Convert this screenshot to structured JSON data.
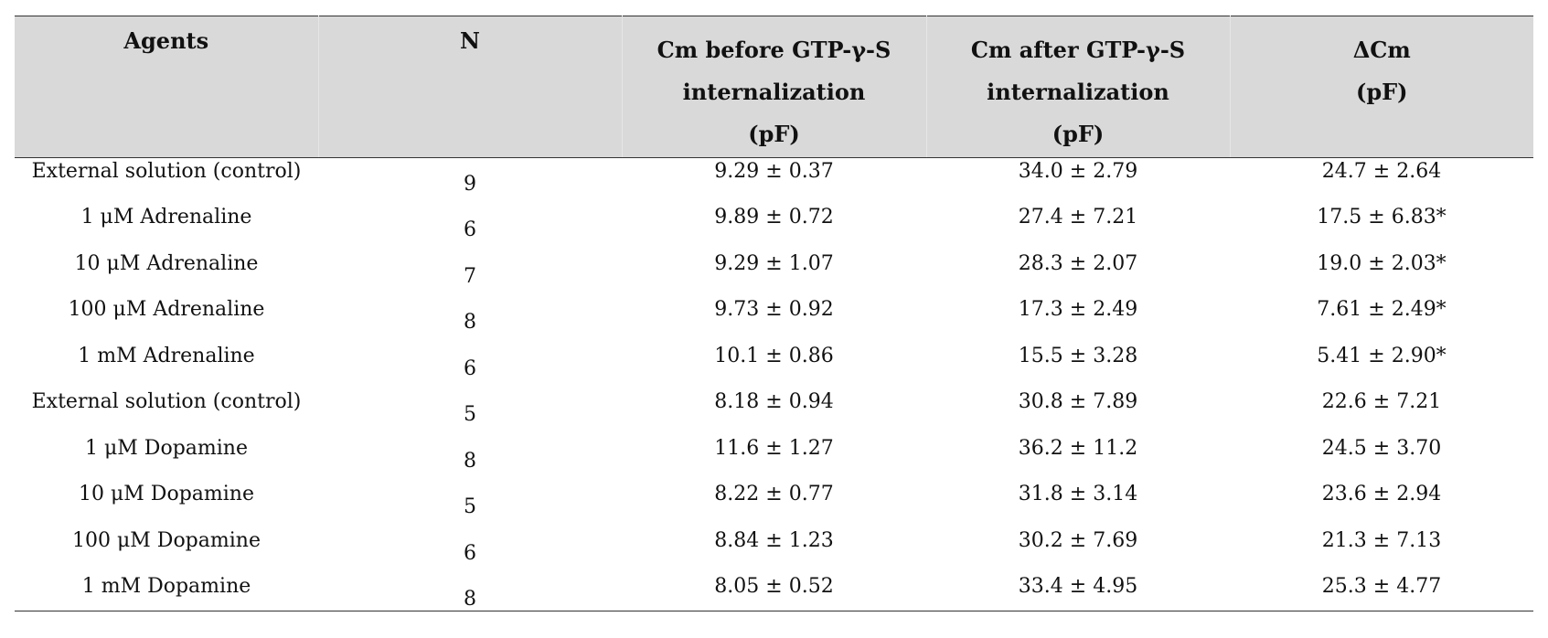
{
  "table": {
    "headers": {
      "agents": "Agents",
      "n": "N",
      "cm_before": [
        "Cm before GTP-γ-S",
        "internalization",
        "(pF)"
      ],
      "cm_after": [
        "Cm after GTP-γ-S",
        "internalization",
        "(pF)"
      ],
      "delta_cm": [
        "ΔCm",
        "(pF)"
      ]
    },
    "rows": [
      {
        "agent": "External solution (control)",
        "n": "9",
        "before": "9.29 ± 0.37",
        "after": "34.0 ± 2.79",
        "delta": "24.7 ± 2.64"
      },
      {
        "agent": "1 μM Adrenaline",
        "n": "6",
        "before": "9.89 ± 0.72",
        "after": "27.4 ± 7.21",
        "delta": "17.5 ± 6.83*"
      },
      {
        "agent": "10 μM Adrenaline",
        "n": "7",
        "before": "9.29 ± 1.07",
        "after": "28.3 ± 2.07",
        "delta": "19.0 ± 2.03*"
      },
      {
        "agent": "100 μM Adrenaline",
        "n": "8",
        "before": "9.73 ± 0.92",
        "after": "17.3 ± 2.49",
        "delta": "7.61 ± 2.49*"
      },
      {
        "agent": "1 mM Adrenaline",
        "n": "6",
        "before": "10.1 ± 0.86",
        "after": "15.5 ± 3.28",
        "delta": "5.41 ± 2.90*"
      },
      {
        "agent": "External solution (control)",
        "n": "5",
        "before": "8.18 ± 0.94",
        "after": "30.8 ± 7.89",
        "delta": "22.6 ± 7.21"
      },
      {
        "agent": "1 μM Dopamine",
        "n": "8",
        "before": "11.6 ± 1.27",
        "after": "36.2 ± 11.2",
        "delta": "24.5 ± 3.70"
      },
      {
        "agent": "10 μM Dopamine",
        "n": "5",
        "before": "8.22 ± 0.77",
        "after": "31.8 ± 3.14",
        "delta": "23.6 ± 2.94"
      },
      {
        "agent": "100 μM Dopamine",
        "n": "6",
        "before": "8.84 ± 1.23",
        "after": "30.2 ± 7.69",
        "delta": "21.3 ± 7.13"
      },
      {
        "agent": "1 mM Dopamine",
        "n": "8",
        "before": "8.05 ± 0.52",
        "after": "33.4 ± 4.95",
        "delta": "25.3 ± 4.77"
      }
    ]
  }
}
